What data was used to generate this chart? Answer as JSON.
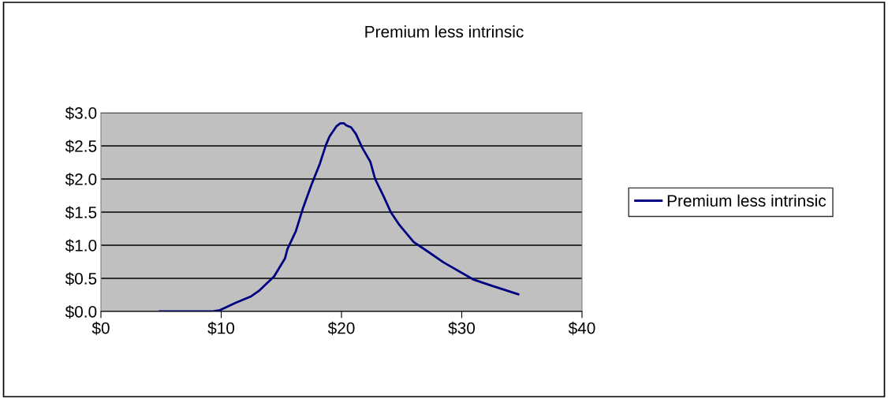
{
  "chart_data": {
    "type": "line",
    "title": "Premium less intrinsic",
    "series": [
      {
        "name": "Premium less intrinsic",
        "color": "#000080",
        "x": [
          4.9,
          6.1,
          6.8,
          9.2,
          9.9,
          11.2,
          12.5,
          13.2,
          14.4,
          15.3,
          15.5,
          16.2,
          16.8,
          17.5,
          18.2,
          18.7,
          19.0,
          19.6,
          19.9,
          20.2,
          20.4,
          20.8,
          21.2,
          21.7,
          22.4,
          22.8,
          23.5,
          24.1,
          24.8,
          26.0,
          27.3,
          28.5,
          31.0,
          32.3,
          34.7
        ],
        "values": [
          0,
          0,
          0,
          0,
          0.02,
          0.13,
          0.23,
          0.32,
          0.53,
          0.8,
          0.94,
          1.21,
          1.56,
          1.91,
          2.23,
          2.51,
          2.64,
          2.8,
          2.84,
          2.84,
          2.81,
          2.78,
          2.68,
          2.48,
          2.26,
          2.0,
          1.74,
          1.5,
          1.31,
          1.05,
          0.89,
          0.74,
          0.48,
          0.4,
          0.26
        ]
      }
    ],
    "xlim": [
      0,
      40
    ],
    "xticks": [
      {
        "value": 0,
        "label": "$0"
      },
      {
        "value": 10,
        "label": "$10"
      },
      {
        "value": 20,
        "label": "$20"
      },
      {
        "value": 30,
        "label": "$30"
      },
      {
        "value": 40,
        "label": "$40"
      }
    ],
    "ylim": [
      0,
      3
    ],
    "yticks": [
      {
        "value": 0,
        "label": "$0.0"
      },
      {
        "value": 0.5,
        "label": "$0.5"
      },
      {
        "value": 1,
        "label": "$1.0"
      },
      {
        "value": 1.5,
        "label": "$1.5"
      },
      {
        "value": 2,
        "label": "$2.0"
      },
      {
        "value": 2.5,
        "label": "$2.5"
      },
      {
        "value": 3,
        "label": "$3.0"
      }
    ],
    "grid": "y",
    "legend": "right",
    "marker": "none",
    "line_style": "solid"
  }
}
